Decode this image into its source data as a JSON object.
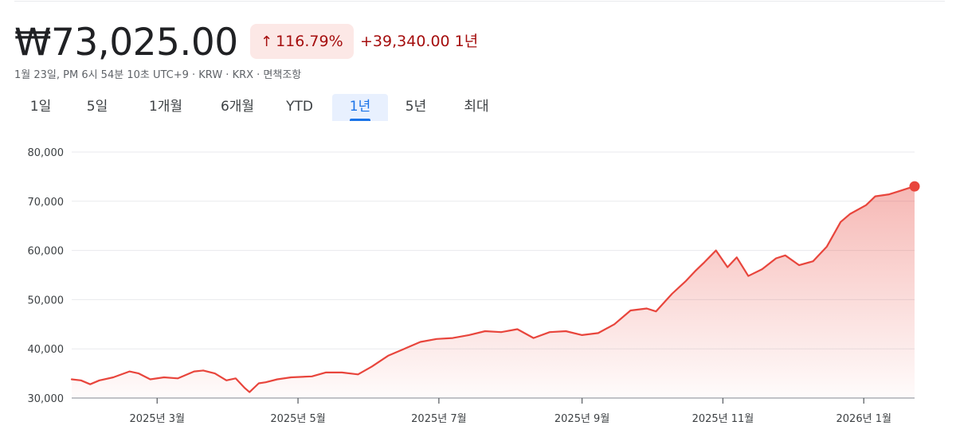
{
  "quote": {
    "price": "₩73,025.00",
    "change_percent": "116.79%",
    "change_value": "+39,340.00",
    "change_period": "1년",
    "meta": "1월 23일, PM 6시 54분 10초 UTC+9 · KRW · KRX · 면책조항"
  },
  "tabs": [
    {
      "label": "1일",
      "active": false
    },
    {
      "label": "5일",
      "active": false
    },
    {
      "label": "1개월",
      "active": false
    },
    {
      "label": "6개월",
      "active": false
    },
    {
      "label": "YTD",
      "active": false
    },
    {
      "label": "1년",
      "active": true
    },
    {
      "label": "5년",
      "active": false
    },
    {
      "label": "최대",
      "active": false
    }
  ],
  "colors": {
    "line": "#e8453c",
    "positive": "#a50e0e",
    "badge_bg": "#fce8e6",
    "tab_active": "#1a73e8"
  },
  "chart_data": {
    "type": "area",
    "title": "",
    "xlabel": "",
    "ylabel": "",
    "ylim": [
      30000,
      80000
    ],
    "xlim": [
      "2025-01-23",
      "2026-01-23"
    ],
    "yticks": [
      "30,000",
      "40,000",
      "50,000",
      "60,000",
      "70,000",
      "80,000"
    ],
    "ytick_values": [
      30000,
      40000,
      50000,
      60000,
      70000,
      80000
    ],
    "xticks": [
      {
        "label": "2025년 3월",
        "date": "2025-03-01"
      },
      {
        "label": "2025년 5월",
        "date": "2025-05-01"
      },
      {
        "label": "2025년 7월",
        "date": "2025-07-01"
      },
      {
        "label": "2025년 9월",
        "date": "2025-09-01"
      },
      {
        "label": "2025년 11월",
        "date": "2025-11-01"
      },
      {
        "label": "2026년 1월",
        "date": "2026-01-01"
      }
    ],
    "grid": true,
    "series": [
      {
        "x": [
          "2025-01-23",
          "2025-01-27",
          "2025-01-31",
          "2025-02-04",
          "2025-02-10",
          "2025-02-17",
          "2025-02-21",
          "2025-02-26",
          "2025-03-04",
          "2025-03-10",
          "2025-03-17",
          "2025-03-21",
          "2025-03-26",
          "2025-03-31",
          "2025-04-04",
          "2025-04-08",
          "2025-04-10",
          "2025-04-14",
          "2025-04-17",
          "2025-04-22",
          "2025-04-28",
          "2025-05-07",
          "2025-05-13",
          "2025-05-20",
          "2025-05-27",
          "2025-06-02",
          "2025-06-09",
          "2025-06-16",
          "2025-06-23",
          "2025-06-30",
          "2025-07-07",
          "2025-07-14",
          "2025-07-21",
          "2025-07-28",
          "2025-08-04",
          "2025-08-11",
          "2025-08-18",
          "2025-08-25",
          "2025-09-01",
          "2025-09-08",
          "2025-09-15",
          "2025-09-22",
          "2025-09-29",
          "2025-10-03",
          "2025-10-10",
          "2025-10-16",
          "2025-10-20",
          "2025-10-24",
          "2025-10-29",
          "2025-11-03",
          "2025-11-07",
          "2025-11-12",
          "2025-11-18",
          "2025-11-24",
          "2025-11-28",
          "2025-12-04",
          "2025-12-10",
          "2025-12-16",
          "2025-12-22",
          "2025-12-26",
          "2026-01-02",
          "2026-01-06",
          "2026-01-12",
          "2026-01-16",
          "2026-01-20",
          "2026-01-23"
        ],
        "y": [
          33800,
          33600,
          32800,
          33600,
          34200,
          35400,
          35000,
          33800,
          34200,
          34000,
          35400,
          35600,
          35000,
          33600,
          34000,
          32000,
          31200,
          33000,
          33200,
          33800,
          34200,
          34400,
          35200,
          35200,
          34800,
          36400,
          38600,
          40000,
          41400,
          42000,
          42200,
          42800,
          43600,
          43400,
          44000,
          42200,
          43400,
          43600,
          42800,
          43200,
          45000,
          47800,
          48200,
          47600,
          51200,
          53800,
          55800,
          57600,
          60000,
          56600,
          58600,
          54800,
          56200,
          58400,
          59000,
          57000,
          57800,
          60800,
          65800,
          67400,
          69200,
          71000,
          71400,
          72000,
          72600,
          73025
        ]
      }
    ]
  }
}
